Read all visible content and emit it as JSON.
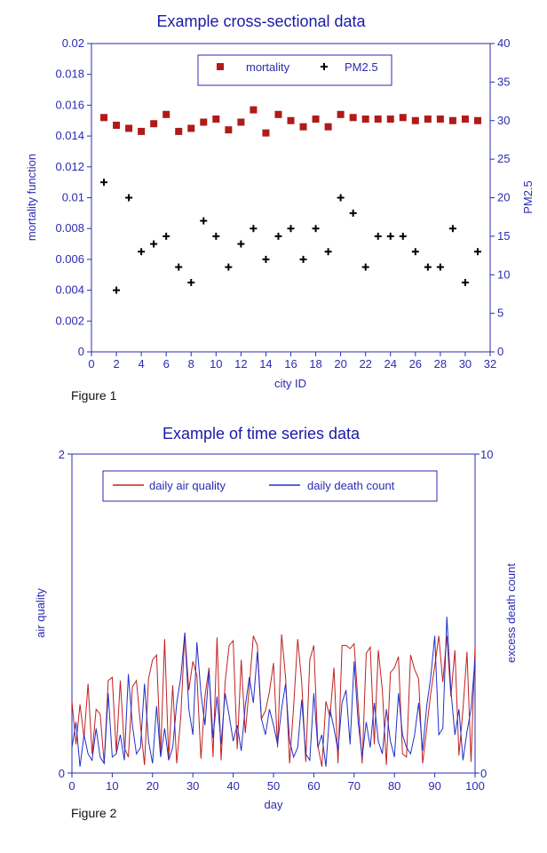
{
  "colors": {
    "blue": "#2b2bb0",
    "red": "#b01a1a",
    "black": "#000000",
    "line_red": "#c02020",
    "line_blue": "#2030c8"
  },
  "chart_data": [
    {
      "type": "scatter",
      "title": "Example cross-sectional data",
      "caption": "Figure 1",
      "xlabel": "city ID",
      "ylabel_left": "mortality function",
      "ylabel_right": "PM2.5",
      "xlim": [
        0,
        32
      ],
      "ylim_left": [
        0,
        0.02
      ],
      "ylim_right": [
        0,
        40
      ],
      "x_ticks": [
        "0",
        "2",
        "4",
        "6",
        "8",
        "10",
        "12",
        "14",
        "16",
        "18",
        "20",
        "22",
        "24",
        "26",
        "28",
        "30",
        "32"
      ],
      "y_ticks_left": [
        "0",
        "0.002",
        "0.004",
        "0.006",
        "0.008",
        "0.01",
        "0.012",
        "0.014",
        "0.016",
        "0.018",
        "0.02"
      ],
      "y_ticks_right": [
        "0",
        "5",
        "10",
        "15",
        "20",
        "25",
        "30",
        "35",
        "40"
      ],
      "legend": [
        {
          "name": "mortality",
          "marker": "square",
          "color": "#b01a1a"
        },
        {
          "name": "PM2.5",
          "marker": "plus",
          "color": "#000000"
        }
      ],
      "x": [
        1,
        2,
        3,
        4,
        5,
        6,
        7,
        8,
        9,
        10,
        11,
        12,
        13,
        14,
        15,
        16,
        17,
        18,
        19,
        20,
        21,
        22,
        23,
        24,
        25,
        26,
        27,
        28,
        29,
        30,
        31
      ],
      "series": [
        {
          "name": "mortality",
          "axis": "left",
          "values": [
            0.0152,
            0.0147,
            0.0145,
            0.0143,
            0.0148,
            0.0154,
            0.0143,
            0.0145,
            0.0149,
            0.0151,
            0.0144,
            0.0149,
            0.0157,
            0.0142,
            0.0154,
            0.015,
            0.0146,
            0.0151,
            0.0146,
            0.0154,
            0.0152,
            0.0151,
            0.0151,
            0.0151,
            0.0152,
            0.015,
            0.0151,
            0.0151,
            0.015,
            0.0151,
            0.015
          ]
        },
        {
          "name": "PM2.5",
          "axis": "right",
          "values": [
            22,
            8,
            20,
            13,
            14,
            15,
            11,
            9,
            17,
            15,
            11,
            14,
            16,
            12,
            15,
            16,
            12,
            16,
            13,
            20,
            18,
            11,
            15,
            15,
            15,
            13,
            11,
            11,
            16,
            9,
            13
          ]
        }
      ]
    },
    {
      "type": "line",
      "title": "Example of time series data",
      "caption": "Figure 2",
      "xlabel": "day",
      "ylabel_left": "air quality",
      "ylabel_right": "excess death count",
      "xlim": [
        0,
        100
      ],
      "ylim_left": [
        0,
        2
      ],
      "ylim_right": [
        0,
        10
      ],
      "x_ticks": [
        "0",
        "10",
        "20",
        "30",
        "40",
        "50",
        "60",
        "70",
        "80",
        "90",
        "100"
      ],
      "y_ticks_left": [
        "0",
        "2"
      ],
      "y_ticks_right": [
        "0",
        "10"
      ],
      "legend": [
        {
          "name": "daily air quality",
          "color": "#c02020"
        },
        {
          "name": "daily death count",
          "color": "#2030c8"
        }
      ],
      "series": [
        {
          "name": "daily air quality",
          "axis": "left",
          "values": [
            0.45,
            0.18,
            0.43,
            0.22,
            0.56,
            0.12,
            0.4,
            0.37,
            0.06,
            0.58,
            0.6,
            0.13,
            0.58,
            0.16,
            0.1,
            0.54,
            0.58,
            0.3,
            0.05,
            0.59,
            0.71,
            0.74,
            0.11,
            0.84,
            0.09,
            0.55,
            0.06,
            0.35,
            0.88,
            0.52,
            0.7,
            0.61,
            0.09,
            0.48,
            0.66,
            0.1,
            0.85,
            0.08,
            0.57,
            0.8,
            0.83,
            0.15,
            0.71,
            0.25,
            0.54,
            0.86,
            0.8,
            0.34,
            0.39,
            0.51,
            0.69,
            0.16,
            0.87,
            0.6,
            0.06,
            0.42,
            0.84,
            0.57,
            0.07,
            0.71,
            0.8,
            0.17,
            0.04,
            0.45,
            0.35,
            0.66,
            0.06,
            0.8,
            0.8,
            0.78,
            0.81,
            0.43,
            0.06,
            0.75,
            0.79,
            0.18,
            0.77,
            0.52,
            0.05,
            0.63,
            0.66,
            0.73,
            0.12,
            0.1,
            0.74,
            0.65,
            0.59,
            0.06,
            0.28,
            0.5,
            0.67,
            0.86,
            0.57,
            0.86,
            0.48,
            0.77,
            0.11,
            0.4,
            0.76,
            0.07,
            0.8
          ]
        },
        {
          "name": "daily death count",
          "axis": "right",
          "values": [
            0.8,
            1.6,
            0.2,
            1.2,
            0.6,
            0.4,
            1.4,
            0.5,
            0.3,
            2.5,
            0.5,
            0.6,
            1.2,
            0.4,
            3.1,
            1.5,
            0.6,
            0.8,
            2.8,
            1.0,
            0.3,
            2.1,
            0.5,
            1.4,
            0.4,
            0.8,
            2.2,
            3.0,
            4.4,
            2.0,
            1.2,
            4.1,
            2.5,
            1.5,
            3.2,
            1.1,
            2.4,
            0.9,
            2.5,
            1.8,
            1.0,
            1.5,
            0.7,
            2.1,
            3.0,
            2.2,
            3.8,
            1.7,
            1.2,
            2.0,
            1.5,
            0.9,
            2.0,
            2.8,
            1.0,
            0.5,
            0.8,
            2.3,
            0.6,
            0.4,
            2.5,
            0.8,
            1.2,
            0.2,
            2.0,
            1.4,
            0.7,
            2.2,
            2.6,
            0.9,
            3.5,
            1.6,
            0.5,
            1.6,
            0.8,
            2.2,
            1.0,
            0.6,
            2.0,
            1.0,
            0.5,
            2.5,
            1.2,
            0.8,
            0.6,
            1.2,
            2.2,
            0.7,
            2.1,
            3.0,
            4.3,
            1.2,
            1.4,
            4.9,
            2.6,
            1.2,
            2.0,
            0.4,
            1.3,
            2.0,
            3.6
          ]
        }
      ]
    }
  ]
}
